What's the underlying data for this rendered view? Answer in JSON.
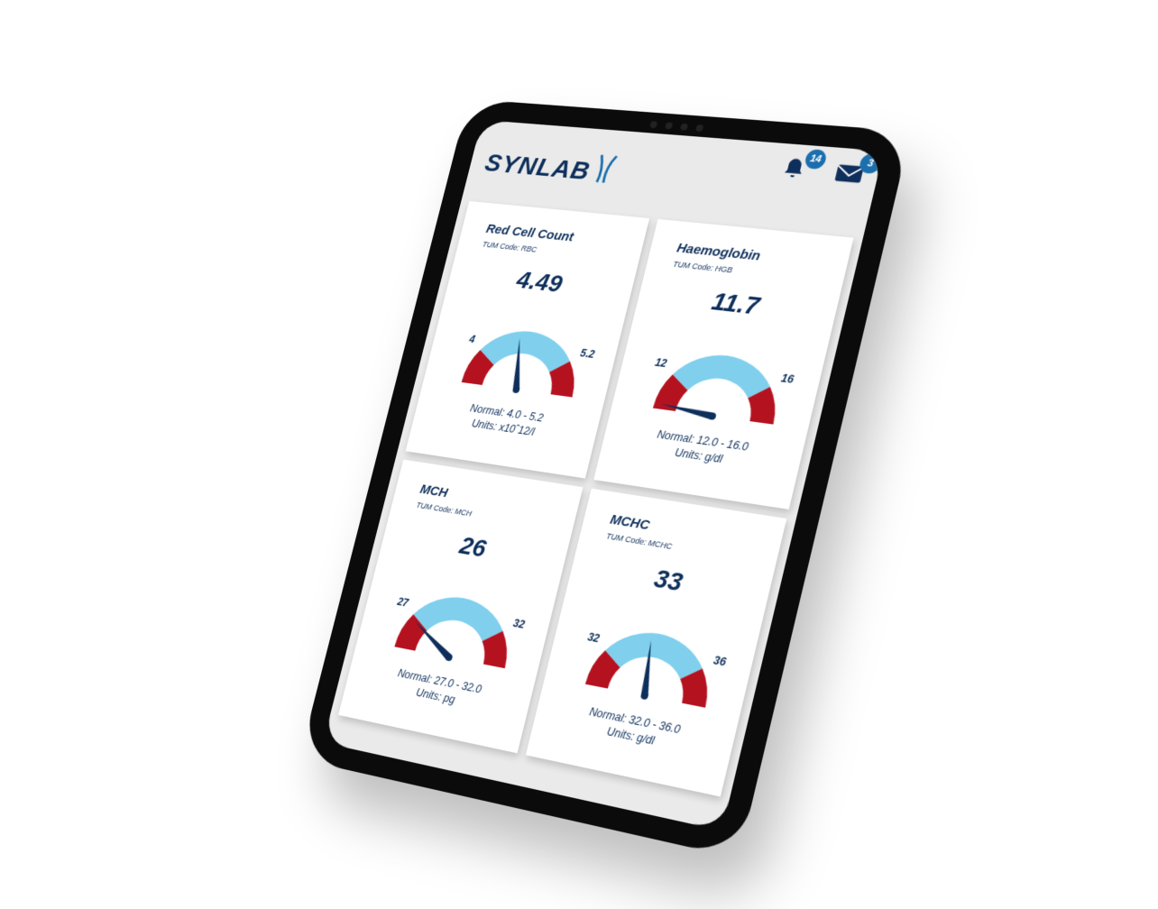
{
  "header": {
    "logo": "SYNLAB",
    "notifications": {
      "icon": "bell-icon",
      "count": "14"
    },
    "messages": {
      "icon": "envelope-icon",
      "count": "3"
    }
  },
  "colors": {
    "primary": "#0e2f5b",
    "normal": "#7fcfed",
    "abnormal": "#b5121f",
    "badge": "#1c6fae"
  },
  "cards": [
    {
      "title": "Red Cell Count",
      "code": "TUM Code: RBC",
      "value": "4.49",
      "low": "4",
      "high": "5.2",
      "normal": "Normal: 4.0 - 5.2",
      "units": "Units: x10ˆ12/l",
      "needle": 0.44
    },
    {
      "title": "Haemoglobin",
      "code": "TUM Code: HGB",
      "value": "11.7",
      "low": "12",
      "high": "16",
      "normal": "Normal: 12.0 - 16.0",
      "units": "Units: g/dl",
      "needle": 0.03
    },
    {
      "title": "MCH",
      "code": "TUM Code: MCH",
      "value": "26",
      "low": "27",
      "high": "32",
      "normal": "Normal: 27.0 - 32.0",
      "units": "Units: pg",
      "needle": 0.18
    },
    {
      "title": "MCHC",
      "code": "TUM Code: MCHC",
      "value": "33",
      "low": "32",
      "high": "36",
      "normal": "Normal: 32.0 - 36.0",
      "units": "Units: g/dl",
      "needle": 0.46
    }
  ]
}
